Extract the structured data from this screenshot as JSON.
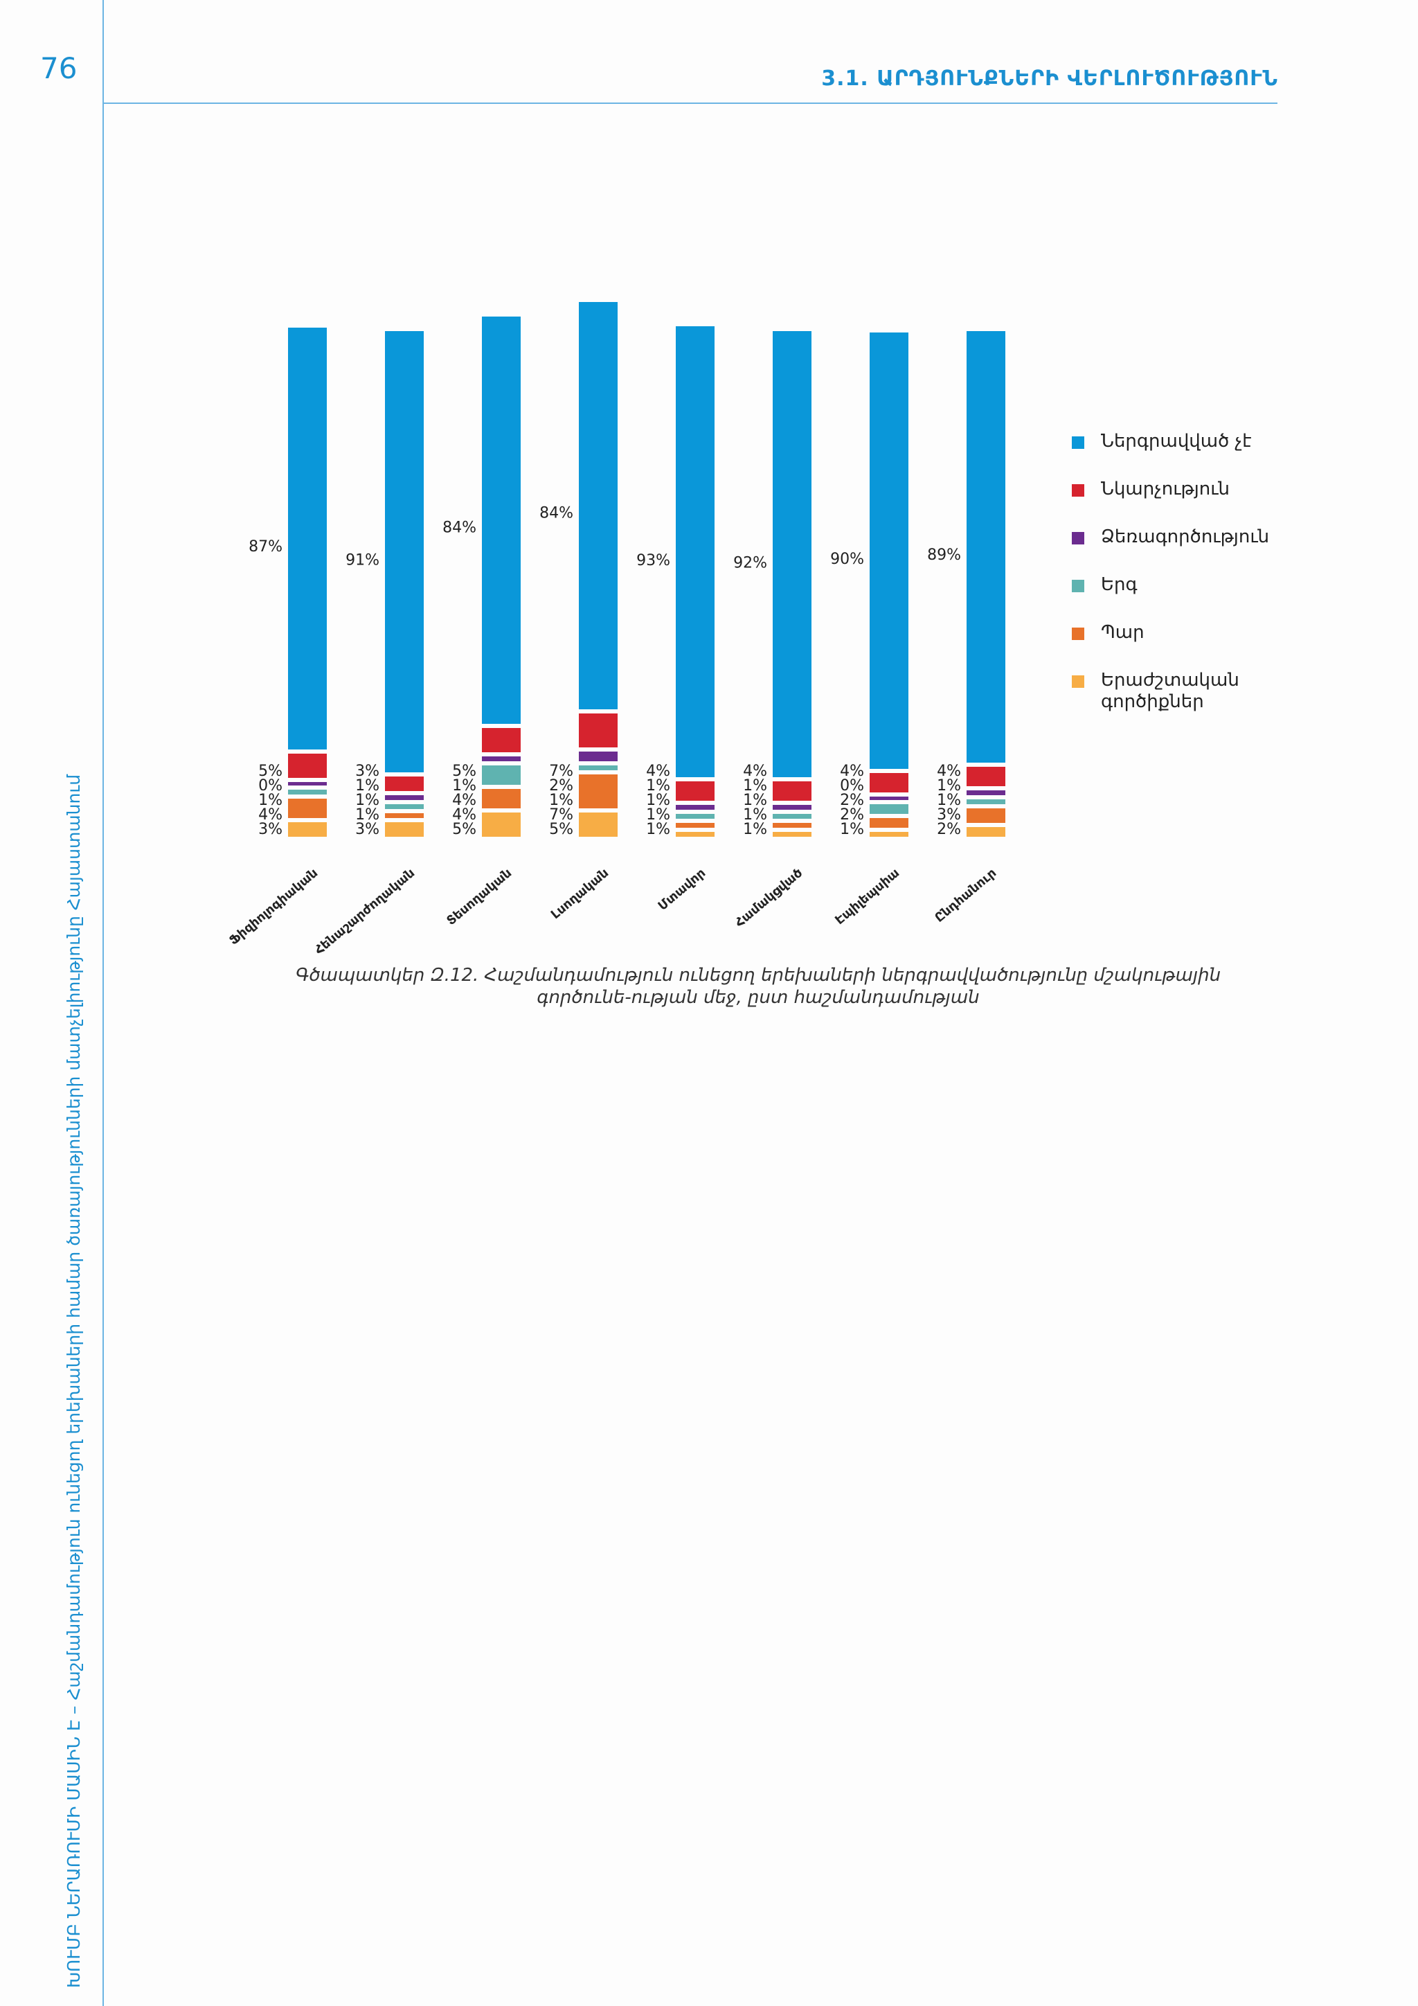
{
  "page": {
    "number": "76",
    "section_title": "3.1. ԱՐԴՅՈՒՆՔՆԵՐԻ ՎԵՐԼՈՒԾՈՒԹՅՈՒՆ",
    "side_text": "ԽՈՒՄԲ ՆԵՐԱՌՈՒՄԻ ՄԱՍԻՆ Է – Հաշմանդամություն ունեցող երեխաների համար ծառայությունների մատչելիությունը Հայաստանում",
    "caption": "Գծապատկեր Զ.12. Հաշմանդամություն ունեցող երեխաների ներգրավվածությունը մշակութային գործունե-ության մեջ, ըստ հաշմանդամության"
  },
  "chart_data": {
    "type": "bar",
    "stacked": true,
    "categories": [
      "Ֆիզիոլոգիական",
      "Հենաշարժողական",
      "Տեսողական",
      "Լսողական",
      "Մտավոր",
      "Համակցված",
      "Էպիլեպսիա",
      "Ընդհանուր"
    ],
    "series": [
      {
        "name": "Ներգրավված չէ",
        "color": "#0a97d9",
        "values": [
          87,
          91,
          84,
          84,
          93,
          92,
          90,
          89
        ]
      },
      {
        "name": "Նկարչություն",
        "color": "#d6232e",
        "values": [
          5,
          3,
          5,
          7,
          4,
          4,
          4,
          4
        ]
      },
      {
        "name": "Ձեռագործություն",
        "color": "#6b2c8f",
        "values": [
          0,
          1,
          1,
          2,
          1,
          1,
          0,
          1
        ]
      },
      {
        "name": "Երգ",
        "color": "#5fb3b0",
        "values": [
          1,
          1,
          4,
          1,
          1,
          1,
          2,
          1
        ]
      },
      {
        "name": "Պար",
        "color": "#e8722a",
        "values": [
          4,
          1,
          4,
          7,
          1,
          1,
          2,
          3
        ]
      },
      {
        "name": "Երաժշտական գործիքներ",
        "color": "#f7ad45",
        "values": [
          3,
          3,
          5,
          5,
          1,
          1,
          1,
          2
        ]
      }
    ],
    "labels": [
      [
        "87%",
        "5%",
        "0%",
        "1%",
        "4%",
        "3%"
      ],
      [
        "91%",
        "3%",
        "1%",
        "1%",
        "1%",
        "3%"
      ],
      [
        "84%",
        "5%",
        "1%",
        "4%",
        "4%",
        "5%"
      ],
      [
        "84%",
        "7%",
        "2%",
        "1%",
        "7%",
        "5%"
      ],
      [
        "93%",
        "4%",
        "1%",
        "1%",
        "1%",
        "1%"
      ],
      [
        "92%",
        "4%",
        "1%",
        "1%",
        "1%",
        "1%"
      ],
      [
        "90%",
        "4%",
        "0%",
        "2%",
        "2%",
        "1%"
      ],
      [
        "89%",
        "4%",
        "1%",
        "1%",
        "3%",
        "2%"
      ]
    ],
    "legend_position": "right",
    "grid": false
  }
}
